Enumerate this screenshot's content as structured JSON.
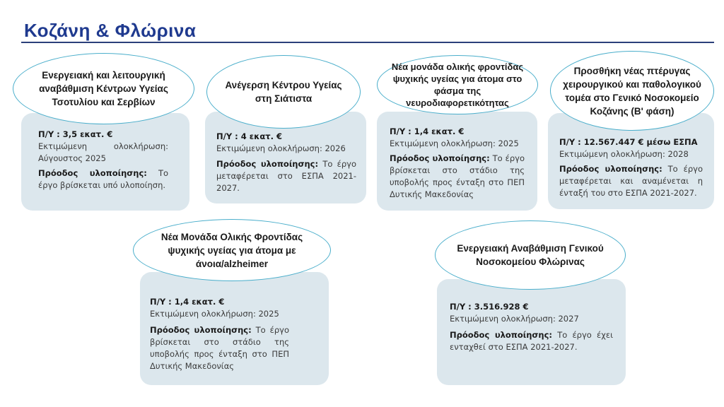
{
  "title": "Κοζάνη & Φλώρινα",
  "cards": [
    {
      "heading": "Ενεργειακή και λειτουργική αναβάθμιση Κέντρων Υγείας Τσοτυλίου και Σερβίων",
      "budget": "Π/Υ : 3,5 εκατ. €",
      "completion": "Εκτιμώμενη ολοκλήρωση: Αύγουστος 2025",
      "progress_label": "Πρόοδος υλοποίησης:",
      "progress_text": "Το έργο βρίσκεται υπό υλοποίηση."
    },
    {
      "heading": "Ανέγερση Κέντρου Υγείας στη Σιάτιστα",
      "budget": "Π/Υ : 4 εκατ. €",
      "completion": "Εκτιμώμενη ολοκλήρωση: 2026",
      "progress_label": "Πρόοδος υλοποίησης:",
      "progress_text": "Το έργο μεταφέρεται στο ΕΣΠΑ 2021-2027."
    },
    {
      "heading": "Νέα μονάδα ολικής φροντίδας ψυχικής υγείας για άτομα στο φάσμα της νευροδιαφορετικότητας",
      "budget": "Π/Υ : 1,4 εκατ. €",
      "completion": "Εκτιμώμενη ολοκλήρωση: 2025",
      "progress_label": "Πρόοδος υλοποίησης:",
      "progress_text": "Το έργο βρίσκεται στο στάδιο της υποβολής προς ένταξη στο ΠΕΠ Δυτικής Μακεδονίας"
    },
    {
      "heading": "Προσθήκη νέας πτέρυγας χειρουργικού και παθολογικού τομέα στο Γενικό Νοσοκομείο Κοζάνης (Β' φάση)",
      "budget": "Π/Υ : 12.567.447 € μέσω ΕΣΠΑ",
      "completion": "Εκτιμώμενη ολοκλήρωση: 2028",
      "progress_label": "Πρόοδος υλοποίησης:",
      "progress_text": "Το έργο μεταφέρεται και αναμένεται η ένταξή του στο ΕΣΠΑ 2021-2027."
    },
    {
      "heading": "Νέα Μονάδα Ολικής Φροντίδας ψυχικής υγείας για άτομα με άνοια/alzheimer",
      "budget": "Π/Υ : 1,4 εκατ. €",
      "completion": "Εκτιμώμενη ολοκλήρωση: 2025",
      "progress_label": "Πρόοδος υλοποίησης:",
      "progress_text": "Το έργο βρίσκεται στο στάδιο της υποβολής προς ένταξη στο ΠΕΠ Δυτικής Μακεδονίας"
    },
    {
      "heading": "Ενεργειακή Αναβάθμιση Γενικού Νοσοκομείου Φλώρινας",
      "budget": "Π/Υ : 3.516.928 €",
      "completion": "Εκτιμώμενη ολοκλήρωση: 2027",
      "progress_label": "Πρόοδος υλοποίησης:",
      "progress_text": "Το έργο έχει ενταχθεί στο ΕΣΠΑ 2021-2027."
    }
  ]
}
